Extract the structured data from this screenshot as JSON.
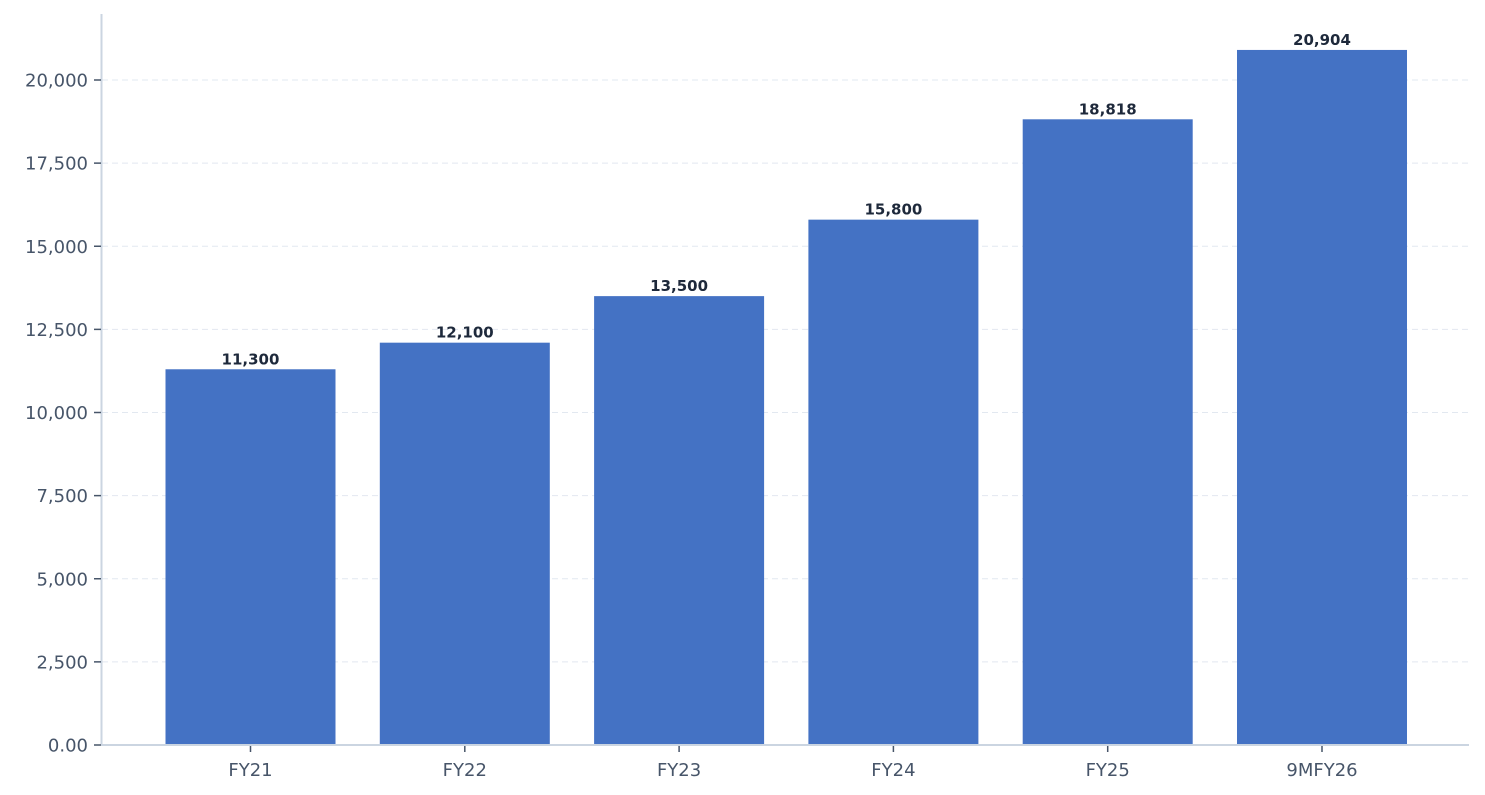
{
  "chart_data": {
    "type": "bar",
    "title": "",
    "xlabel": "",
    "ylabel": "",
    "categories": [
      "FY21",
      "FY22",
      "FY23",
      "FY24",
      "FY25",
      "9MFY26"
    ],
    "values": [
      11300,
      12100,
      13500,
      15800,
      18818,
      20904
    ],
    "data_labels": [
      "11,300",
      "12,100",
      "13,500",
      "15,800",
      "18,818",
      "20,904"
    ],
    "ylim": [
      0,
      21950
    ],
    "yticks": [
      0,
      2500,
      5000,
      7500,
      10000,
      12500,
      15000,
      17500,
      20000
    ],
    "ytick_labels": [
      "0.00",
      "2,500",
      "5,000",
      "7,500",
      "10,000",
      "12,500",
      "15,000",
      "17,500",
      "20,000"
    ],
    "grid": {
      "y": true,
      "style": "dashed"
    },
    "legend": null,
    "colors": {
      "bar": "#4472C4",
      "axis": "#CBD5E1",
      "grid": "#E2E8F0",
      "tick_text": "#475569",
      "label_text": "#1E293B"
    }
  }
}
